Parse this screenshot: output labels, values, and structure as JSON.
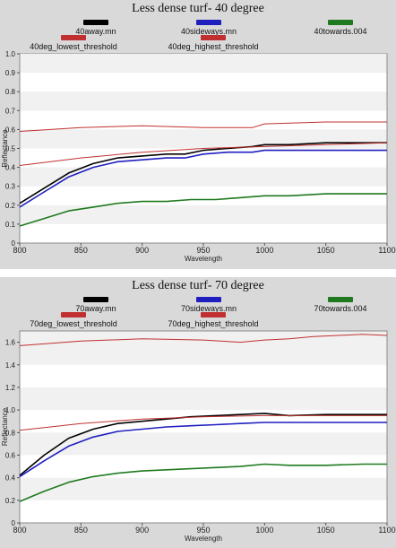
{
  "chart_data": [
    {
      "type": "line",
      "title": "Less dense turf- 40 degree",
      "xlabel": "Wavelength",
      "ylabel": "Reflectance",
      "xlim": [
        800,
        1100
      ],
      "ylim": [
        0,
        1.0
      ],
      "xticks": [
        "800",
        "850",
        "900",
        "950",
        "1000",
        "1050",
        "1100"
      ],
      "yticks": [
        "0",
        "0.1",
        "0.2",
        "0.3",
        "0.4",
        "0.5",
        "0.6",
        "0.7",
        "0.8",
        "0.9",
        "1.0"
      ],
      "xtick_values": [
        800,
        850,
        900,
        950,
        1000,
        1050,
        1100
      ],
      "ytick_values": [
        0,
        0.1,
        0.2,
        0.3,
        0.4,
        0.5,
        0.6,
        0.7,
        0.8,
        0.9,
        1.0
      ],
      "grid": "horizontal bands",
      "series": [
        {
          "name": "40away.mn",
          "color": "#000000",
          "x": [
            800,
            820,
            840,
            860,
            880,
            900,
            920,
            935,
            950,
            970,
            990,
            1000,
            1020,
            1050,
            1080,
            1100
          ],
          "y": [
            0.21,
            0.29,
            0.37,
            0.42,
            0.45,
            0.46,
            0.47,
            0.47,
            0.49,
            0.5,
            0.51,
            0.52,
            0.52,
            0.53,
            0.53,
            0.53
          ]
        },
        {
          "name": "40sideways.mn",
          "color": "#1f1fc0",
          "x": [
            800,
            820,
            840,
            860,
            880,
            900,
            920,
            935,
            950,
            970,
            990,
            1000,
            1020,
            1050,
            1080,
            1100
          ],
          "y": [
            0.19,
            0.27,
            0.35,
            0.4,
            0.43,
            0.44,
            0.45,
            0.45,
            0.47,
            0.48,
            0.48,
            0.49,
            0.49,
            0.49,
            0.49,
            0.49
          ]
        },
        {
          "name": "40towards.004",
          "color": "#1f7a1f",
          "x": [
            800,
            820,
            840,
            860,
            880,
            900,
            920,
            940,
            960,
            980,
            1000,
            1020,
            1050,
            1080,
            1100
          ],
          "y": [
            0.09,
            0.13,
            0.17,
            0.19,
            0.21,
            0.22,
            0.22,
            0.23,
            0.23,
            0.24,
            0.25,
            0.25,
            0.26,
            0.26,
            0.26
          ]
        },
        {
          "name": "40deg_lowest_threshold",
          "color": "#c03030",
          "x": [
            800,
            850,
            900,
            950,
            1000,
            1050,
            1100
          ],
          "y": [
            0.41,
            0.45,
            0.48,
            0.5,
            0.51,
            0.52,
            0.53
          ]
        },
        {
          "name": "40deg_highest_threshold",
          "color": "#c03030",
          "x": [
            800,
            850,
            900,
            950,
            990,
            1000,
            1050,
            1080,
            1100
          ],
          "y": [
            0.59,
            0.61,
            0.62,
            0.61,
            0.61,
            0.63,
            0.64,
            0.64,
            0.64
          ]
        }
      ]
    },
    {
      "type": "line",
      "title": "Less dense turf- 70 degree",
      "xlabel": "Wavelength",
      "ylabel": "Reflectance",
      "xlim": [
        800,
        1100
      ],
      "ylim": [
        0,
        1.7
      ],
      "xticks": [
        "800",
        "850",
        "900",
        "950",
        "1000",
        "1050",
        "1100"
      ],
      "yticks": [
        "0",
        "0.2",
        "0.4",
        "0.6",
        "0.8",
        "1.0",
        "1.2",
        "1.4",
        "1.6"
      ],
      "xtick_values": [
        800,
        850,
        900,
        950,
        1000,
        1050,
        1100
      ],
      "ytick_values": [
        0,
        0.2,
        0.4,
        0.6,
        0.8,
        1.0,
        1.2,
        1.4,
        1.6
      ],
      "grid": "horizontal bands",
      "series": [
        {
          "name": "70away.mn",
          "color": "#000000",
          "x": [
            800,
            820,
            840,
            860,
            880,
            900,
            920,
            940,
            960,
            980,
            1000,
            1020,
            1050,
            1080,
            1100
          ],
          "y": [
            0.42,
            0.6,
            0.75,
            0.83,
            0.88,
            0.9,
            0.92,
            0.94,
            0.95,
            0.96,
            0.97,
            0.95,
            0.96,
            0.96,
            0.96
          ]
        },
        {
          "name": "70sideways.mn",
          "color": "#1f1fc0",
          "x": [
            800,
            820,
            840,
            860,
            880,
            900,
            920,
            940,
            960,
            980,
            1000,
            1020,
            1050,
            1080,
            1100
          ],
          "y": [
            0.41,
            0.55,
            0.68,
            0.76,
            0.81,
            0.83,
            0.85,
            0.86,
            0.87,
            0.88,
            0.89,
            0.89,
            0.89,
            0.89,
            0.89
          ]
        },
        {
          "name": "70towards.004",
          "color": "#1f7a1f",
          "x": [
            800,
            820,
            840,
            860,
            880,
            900,
            920,
            940,
            960,
            980,
            1000,
            1020,
            1050,
            1080,
            1100
          ],
          "y": [
            0.19,
            0.28,
            0.36,
            0.41,
            0.44,
            0.46,
            0.47,
            0.48,
            0.49,
            0.5,
            0.52,
            0.51,
            0.51,
            0.52,
            0.52
          ]
        },
        {
          "name": "70deg_lowest_threshold",
          "color": "#c03030",
          "x": [
            800,
            850,
            900,
            950,
            1000,
            1050,
            1100
          ],
          "y": [
            0.82,
            0.88,
            0.92,
            0.94,
            0.95,
            0.95,
            0.95
          ]
        },
        {
          "name": "70deg_highest_threshold",
          "color": "#c03030",
          "x": [
            800,
            850,
            900,
            950,
            980,
            1000,
            1020,
            1040,
            1060,
            1080,
            1100
          ],
          "y": [
            1.57,
            1.61,
            1.63,
            1.62,
            1.6,
            1.62,
            1.63,
            1.65,
            1.66,
            1.67,
            1.66
          ]
        }
      ]
    }
  ]
}
